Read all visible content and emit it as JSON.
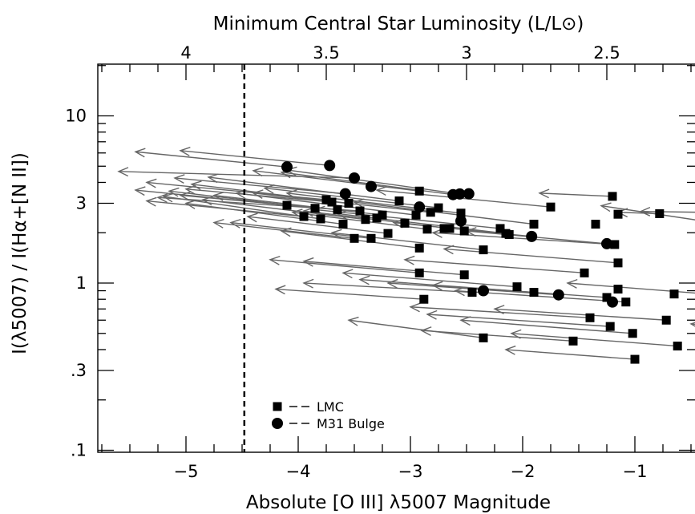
{
  "chart_data": {
    "type": "scatter",
    "title": "",
    "xlabel": "Absolute [O III] λ5007 Magnitude",
    "ylabel": "I(λ5007) / I(Hα+[N II])",
    "top_axis_label": "Minimum Central Star Luminosity (L/L⊙)",
    "xlim": [
      -5.75,
      -0.3
    ],
    "ylim": [
      0.1,
      20
    ],
    "y_scale": "log",
    "x_ticks": [
      {
        "value": -5,
        "label": "−5"
      },
      {
        "value": -4,
        "label": "−4"
      },
      {
        "value": -3,
        "label": "−3"
      },
      {
        "value": -2,
        "label": "−2"
      },
      {
        "value": -1,
        "label": "−1"
      }
    ],
    "y_ticks": [
      {
        "value": 10,
        "label": "10"
      },
      {
        "value": 3,
        "label": "3"
      },
      {
        "value": 1,
        "label": "1"
      },
      {
        "value": 0.3,
        "label": ".3"
      },
      {
        "value": 0.1,
        "label": ".1"
      }
    ],
    "top_ticks": [
      {
        "value": -5.0,
        "label": "4"
      },
      {
        "value": -3.75,
        "label": "3.5"
      },
      {
        "value": -2.5,
        "label": "3"
      },
      {
        "value": -1.25,
        "label": "2.5"
      }
    ],
    "vertical_line": {
      "x": -4.48,
      "style": "dashed"
    },
    "legend": {
      "position": "bottom-left",
      "entries": [
        {
          "marker": "square",
          "label": "LMC"
        },
        {
          "marker": "circle",
          "label": "M31 Bulge"
        }
      ]
    },
    "series": [
      {
        "name": "LMC",
        "marker": "square",
        "points": [
          [
            -4.1,
            2.92
          ],
          [
            -3.95,
            2.5
          ],
          [
            -3.85,
            2.8
          ],
          [
            -3.8,
            2.42
          ],
          [
            -3.75,
            3.15
          ],
          [
            -3.7,
            3.05
          ],
          [
            -3.65,
            2.75
          ],
          [
            -3.6,
            2.25
          ],
          [
            -3.55,
            3.0
          ],
          [
            -3.5,
            1.85
          ],
          [
            -3.45,
            2.7
          ],
          [
            -3.4,
            2.4
          ],
          [
            -3.35,
            1.85
          ],
          [
            -3.3,
            2.45
          ],
          [
            -3.25,
            2.55
          ],
          [
            -3.2,
            1.98
          ],
          [
            -3.1,
            3.1
          ],
          [
            -3.05,
            2.28
          ],
          [
            -2.95,
            2.55
          ],
          [
            -2.92,
            3.55
          ],
          [
            -2.92,
            1.62
          ],
          [
            -2.92,
            1.15
          ],
          [
            -2.88,
            0.8
          ],
          [
            -2.85,
            2.1
          ],
          [
            -2.82,
            2.65
          ],
          [
            -2.75,
            2.82
          ],
          [
            -2.7,
            2.12
          ],
          [
            -2.65,
            2.12
          ],
          [
            -2.55,
            2.62
          ],
          [
            -2.52,
            2.05
          ],
          [
            -2.52,
            1.12
          ],
          [
            -2.45,
            0.88
          ],
          [
            -2.35,
            1.58
          ],
          [
            -2.35,
            0.47
          ],
          [
            -2.2,
            2.12
          ],
          [
            -2.15,
            1.98
          ],
          [
            -2.12,
            1.95
          ],
          [
            -2.05,
            0.95
          ],
          [
            -1.9,
            2.25
          ],
          [
            -1.9,
            0.88
          ],
          [
            -1.75,
            2.85
          ],
          [
            -1.55,
            0.45
          ],
          [
            -1.45,
            1.15
          ],
          [
            -1.4,
            0.62
          ],
          [
            -1.35,
            2.25
          ],
          [
            -1.25,
            0.82
          ],
          [
            -1.22,
            0.55
          ],
          [
            -1.2,
            3.3
          ],
          [
            -1.18,
            1.7
          ],
          [
            -1.15,
            2.58
          ],
          [
            -1.15,
            1.32
          ],
          [
            -1.15,
            0.92
          ],
          [
            -1.08,
            0.77
          ],
          [
            -1.02,
            0.5
          ],
          [
            -1.0,
            0.35
          ],
          [
            -0.78,
            2.6
          ],
          [
            -0.72,
            0.6
          ],
          [
            -0.65,
            0.86
          ],
          [
            -0.62,
            0.42
          ],
          [
            -0.4,
            2.65
          ]
        ]
      },
      {
        "name": "M31 Bulge",
        "marker": "circle",
        "points": [
          [
            -4.1,
            4.95
          ],
          [
            -3.72,
            5.05
          ],
          [
            -3.58,
            3.42
          ],
          [
            -3.5,
            4.25
          ],
          [
            -3.35,
            3.78
          ],
          [
            -2.92,
            2.85
          ],
          [
            -2.62,
            3.38
          ],
          [
            -2.56,
            3.41
          ],
          [
            -2.55,
            2.35
          ],
          [
            -2.48,
            3.42
          ],
          [
            -2.35,
            0.9
          ],
          [
            -1.92,
            1.9
          ],
          [
            -1.68,
            0.85
          ],
          [
            -1.25,
            1.72
          ],
          [
            -1.2,
            0.77
          ]
        ]
      }
    ],
    "arrows": [
      [
        -4.1,
        2.92,
        -5.45,
        3.6
      ],
      [
        -3.95,
        2.5,
        -5.35,
        3.1
      ],
      [
        -3.85,
        2.8,
        -5.15,
        3.55
      ],
      [
        -3.8,
        2.42,
        -5.2,
        3.3
      ],
      [
        -3.75,
        3.15,
        -5.35,
        4.0
      ],
      [
        -3.7,
        3.05,
        -5.0,
        3.65
      ],
      [
        -3.65,
        2.75,
        -5.05,
        3.35
      ],
      [
        -3.6,
        2.25,
        -5.0,
        3.0
      ],
      [
        -3.55,
        3.0,
        -4.95,
        3.9
      ],
      [
        -3.45,
        2.7,
        -5.25,
        3.25
      ],
      [
        -3.4,
        2.4,
        -4.85,
        3.15
      ],
      [
        -3.25,
        2.55,
        -4.75,
        3.35
      ],
      [
        -3.1,
        3.1,
        -4.8,
        4.3
      ],
      [
        -2.95,
        2.55,
        -4.55,
        3.45
      ],
      [
        -2.92,
        3.55,
        -4.4,
        4.7
      ],
      [
        -2.82,
        2.65,
        -4.4,
        3.45
      ],
      [
        -2.75,
        2.82,
        -4.3,
        3.7
      ],
      [
        -2.55,
        2.62,
        -4.1,
        3.45
      ],
      [
        -2.2,
        2.12,
        -3.85,
        2.75
      ],
      [
        -2.15,
        1.98,
        -3.65,
        2.6
      ],
      [
        -1.9,
        2.25,
        -3.5,
        3.05
      ],
      [
        -1.75,
        2.85,
        -3.3,
        3.6
      ],
      [
        -4.1,
        4.95,
        -5.45,
        6.1
      ],
      [
        -3.72,
        5.05,
        -5.05,
        6.2
      ],
      [
        -3.58,
        3.42,
        -5.1,
        4.25
      ],
      [
        -3.5,
        4.25,
        -5.6,
        4.65
      ],
      [
        -2.62,
        3.38,
        -4.15,
        4.6
      ],
      [
        -2.56,
        3.41,
        -4.1,
        4.75
      ],
      [
        -3.5,
        1.85,
        -4.75,
        2.3
      ],
      [
        -3.35,
        1.85,
        -4.6,
        2.3
      ],
      [
        -3.2,
        1.98,
        -4.45,
        2.5
      ],
      [
        -2.92,
        1.62,
        -4.15,
        2.05
      ],
      [
        -2.85,
        2.1,
        -4.05,
        2.65
      ],
      [
        -2.65,
        2.12,
        -3.95,
        2.7
      ],
      [
        -2.35,
        1.58,
        -3.7,
        2.0
      ],
      [
        -2.92,
        1.15,
        -4.25,
        1.38
      ],
      [
        -2.52,
        1.12,
        -3.95,
        1.35
      ],
      [
        -2.05,
        0.95,
        -3.6,
        1.15
      ],
      [
        -1.9,
        0.88,
        -3.45,
        1.05
      ],
      [
        -1.45,
        1.15,
        -3.05,
        1.38
      ],
      [
        -1.18,
        1.7,
        -2.8,
        2.0
      ],
      [
        -1.15,
        1.32,
        -2.7,
        1.6
      ],
      [
        -1.92,
        1.9,
        -3.15,
        2.3
      ],
      [
        -1.25,
        1.72,
        -2.5,
        2.05
      ],
      [
        -2.45,
        0.88,
        -3.95,
        1.0
      ],
      [
        -2.88,
        0.8,
        -4.2,
        0.92
      ],
      [
        -1.68,
        0.85,
        -3.2,
        1.0
      ],
      [
        -1.4,
        0.62,
        -3.0,
        0.72
      ],
      [
        -1.25,
        0.82,
        -2.8,
        0.97
      ],
      [
        -1.22,
        0.55,
        -2.85,
        0.65
      ],
      [
        -1.08,
        0.77,
        -2.6,
        0.9
      ],
      [
        -1.02,
        0.5,
        -2.55,
        0.6
      ],
      [
        -2.35,
        0.47,
        -3.55,
        0.6
      ],
      [
        -1.55,
        0.45,
        -2.9,
        0.52
      ],
      [
        -1.0,
        0.35,
        -2.15,
        0.4
      ],
      [
        -0.62,
        0.42,
        -2.1,
        0.5
      ],
      [
        -0.72,
        0.6,
        -2.25,
        0.7
      ],
      [
        -0.35,
        0.86,
        -1.6,
        1.0
      ],
      [
        -1.2,
        3.3,
        -1.85,
        3.45
      ],
      [
        -0.78,
        2.6,
        -1.15,
        2.65
      ],
      [
        -0.4,
        2.65,
        -0.95,
        2.68
      ],
      [
        -0.3,
        2.3,
        -1.3,
        2.9
      ],
      [
        -0.3,
        0.75,
        -0.4,
        0.76
      ],
      [
        -0.3,
        0.55,
        -0.5,
        0.57
      ]
    ]
  }
}
